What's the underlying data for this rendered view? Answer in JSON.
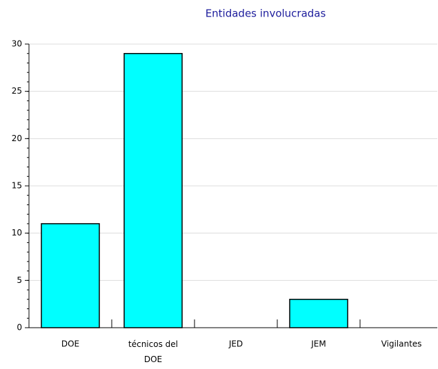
{
  "chart_data": {
    "type": "bar",
    "title": "Entidades involucradas",
    "categories": [
      "DOE",
      "técnicos del DOE",
      "JED",
      "JEM",
      "Vigilantes"
    ],
    "values": [
      11,
      29,
      0,
      3,
      0
    ],
    "color": "#00ffff",
    "ylim": [
      0,
      30
    ],
    "yticks": [
      0,
      5,
      10,
      15,
      20,
      25,
      30
    ],
    "grid": true
  }
}
